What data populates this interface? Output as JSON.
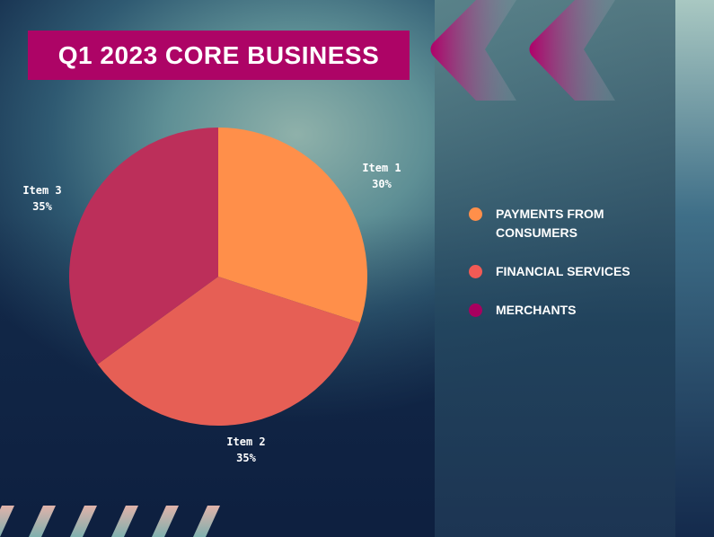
{
  "title": "Q1 2023 CORE BUSINESS",
  "chart_data": {
    "type": "pie",
    "categories": [
      "Item 1",
      "Item 2",
      "Item 3"
    ],
    "values": [
      30,
      35,
      35
    ],
    "data_labels": [
      "30%",
      "35%",
      "35%"
    ],
    "colors": [
      "#FF8F4A",
      "#E65F55",
      "#BC2F5A"
    ],
    "legend_position": "right"
  },
  "legend": [
    {
      "label": "PAYMENTS FROM CONSUMERS",
      "color": "#FF8F4A"
    },
    {
      "label": "FINANCIAL SERVICES",
      "color": "#F25A55"
    },
    {
      "label": "MERCHANTS",
      "color": "#A8005F"
    }
  ]
}
